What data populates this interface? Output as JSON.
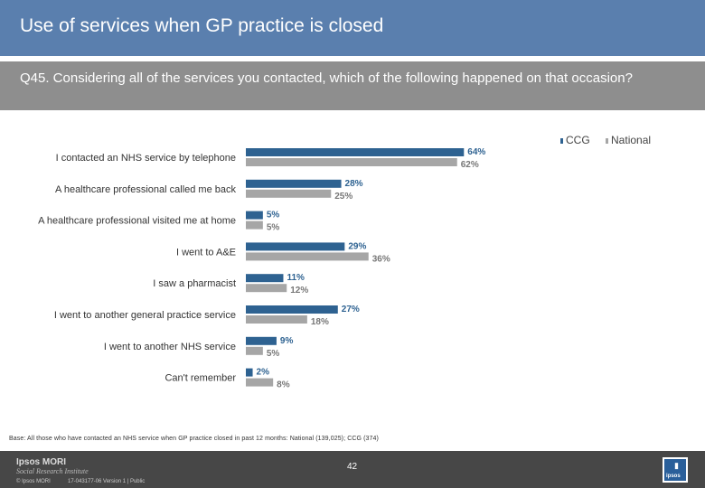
{
  "header": {
    "title": "Use of services when GP practice is closed",
    "question": "Q45. Considering all of the services you contacted, which of the following happened on that occasion?"
  },
  "legend": {
    "ccg_label": "CCG",
    "national_label": "National"
  },
  "colors": {
    "ccg": "#2e6291",
    "national": "#a6a6a6",
    "ccg_label_text": "#2e6291",
    "national_label_text": "#777777"
  },
  "chart_data": {
    "type": "bar",
    "orientation": "horizontal",
    "categories": [
      "I contacted an NHS service by telephone",
      "A healthcare professional called me back",
      "A healthcare professional visited me at home",
      "I went to A&E",
      "I saw a pharmacist",
      "I went to another general practice service",
      "I went to another NHS service",
      "Can't remember"
    ],
    "series": [
      {
        "name": "CCG",
        "values": [
          64,
          28,
          5,
          29,
          11,
          27,
          9,
          2
        ],
        "labels": [
          "64%",
          "28%",
          "5%",
          "29%",
          "11%",
          "27%",
          "9%",
          "2%"
        ]
      },
      {
        "name": "National",
        "values": [
          62,
          25,
          5,
          36,
          12,
          18,
          5,
          8
        ],
        "labels": [
          "62%",
          "25%",
          "5%",
          "36%",
          "12%",
          "18%",
          "5%",
          "8%"
        ]
      }
    ],
    "xlim": [
      0,
      100
    ],
    "legend_position": "top-right",
    "grid": false
  },
  "footer": {
    "base_note": "Base: All those who have contacted an NHS service when GP practice closed in past 12 months: National (139,025); CCG (374)",
    "logo_line1": "Ipsos MORI",
    "logo_line2": "Social Research Institute",
    "copyright": "© Ipsos MORI",
    "job_ref": "17-043177-06 Version 1 | Public",
    "page_number": "42",
    "corner_logo_text": "ipsos"
  }
}
